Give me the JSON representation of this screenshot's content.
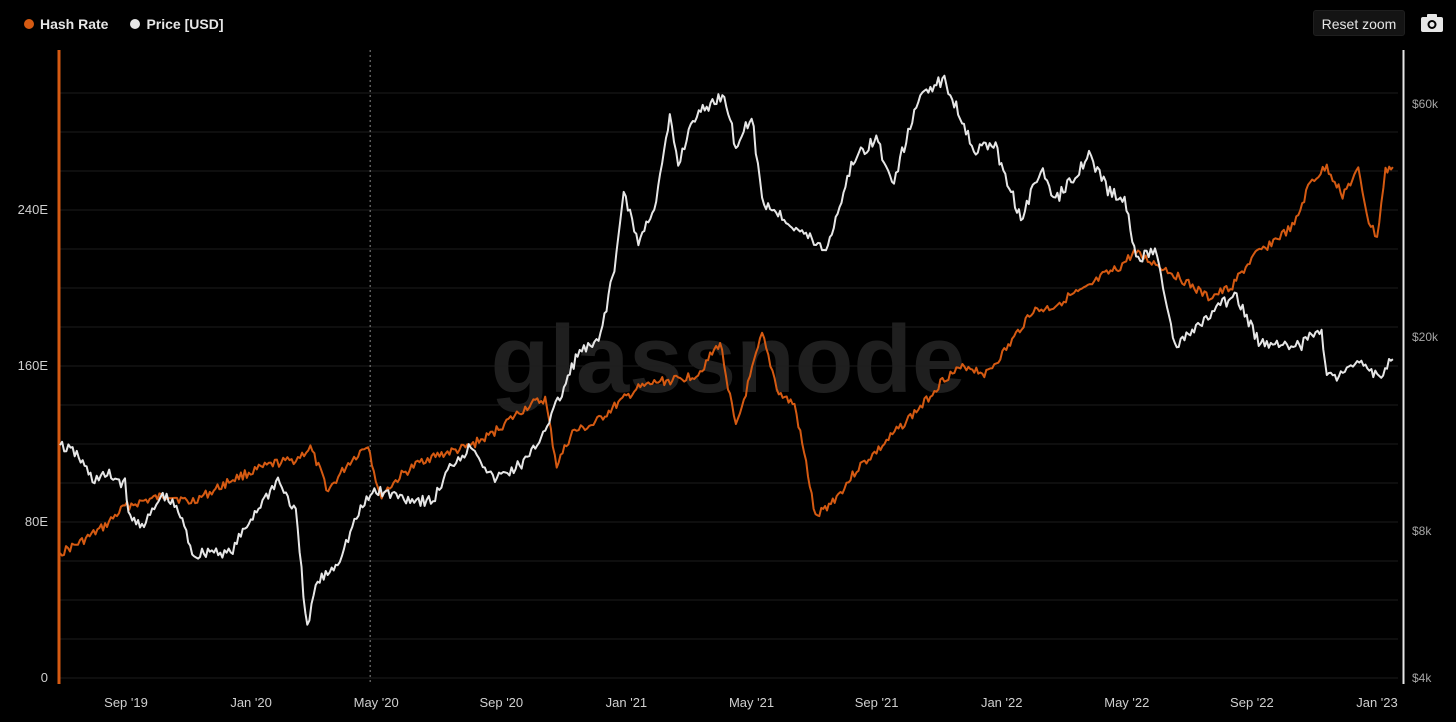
{
  "toolbar": {
    "reset_zoom_label": "Reset zoom",
    "camera_icon": "camera-icon"
  },
  "watermark": "glassnode",
  "chart_data": {
    "type": "line",
    "legend": [
      {
        "name": "Hash Rate",
        "color": "#d55a12"
      },
      {
        "name": "Price [USD]",
        "color": "#e6e6e6"
      }
    ],
    "legend_position": "top-left",
    "grid": true,
    "x_range": [
      "2019-07-20",
      "2023-01-15"
    ],
    "x_ticks": [
      "Sep '19",
      "Jan '20",
      "May '20",
      "Sep '20",
      "Jan '21",
      "May '21",
      "Sep '21",
      "Jan '22",
      "May '22",
      "Sep '22",
      "Jan '23"
    ],
    "y_left": {
      "ticks": [
        "0",
        "80E",
        "160E",
        "240E"
      ],
      "values": [
        0,
        80,
        160,
        240
      ],
      "range": [
        0,
        320
      ]
    },
    "y_right": {
      "scale": "log",
      "ticks": [
        "$4k",
        "$8k",
        "$20k",
        "$60k"
      ],
      "values": [
        4000,
        8000,
        20000,
        60000
      ],
      "range": [
        4000,
        72000
      ]
    },
    "crosshair_date": "2020-05-11",
    "series": [
      {
        "name": "Hash Rate",
        "color": "#d55a12",
        "axis": "left",
        "points": [
          [
            "2019-07-20",
            64
          ],
          [
            "2019-08-10",
            70
          ],
          [
            "2019-09-01",
            78
          ],
          [
            "2019-09-20",
            88
          ],
          [
            "2019-10-10",
            91
          ],
          [
            "2019-11-01",
            94
          ],
          [
            "2019-11-20",
            90
          ],
          [
            "2019-12-10",
            95
          ],
          [
            "2020-01-01",
            102
          ],
          [
            "2020-01-20",
            106
          ],
          [
            "2020-02-10",
            110
          ],
          [
            "2020-03-01",
            112
          ],
          [
            "2020-03-15",
            118
          ],
          [
            "2020-04-01",
            96
          ],
          [
            "2020-04-20",
            110
          ],
          [
            "2020-05-09",
            120
          ],
          [
            "2020-05-20",
            93
          ],
          [
            "2020-06-10",
            104
          ],
          [
            "2020-07-01",
            112
          ],
          [
            "2020-07-20",
            115
          ],
          [
            "2020-08-10",
            118
          ],
          [
            "2020-09-01",
            124
          ],
          [
            "2020-09-20",
            132
          ],
          [
            "2020-10-10",
            140
          ],
          [
            "2020-10-25",
            143
          ],
          [
            "2020-11-05",
            109
          ],
          [
            "2020-11-20",
            126
          ],
          [
            "2020-12-10",
            130
          ],
          [
            "2021-01-01",
            140
          ],
          [
            "2021-01-20",
            148
          ],
          [
            "2021-02-10",
            152
          ],
          [
            "2021-03-01",
            153
          ],
          [
            "2021-03-20",
            156
          ],
          [
            "2021-04-10",
            172
          ],
          [
            "2021-04-25",
            128
          ],
          [
            "2021-05-20",
            176
          ],
          [
            "2021-06-05",
            146
          ],
          [
            "2021-06-20",
            140
          ],
          [
            "2021-07-01",
            110
          ],
          [
            "2021-07-10",
            82
          ],
          [
            "2021-08-01",
            94
          ],
          [
            "2021-08-20",
            108
          ],
          [
            "2021-09-10",
            118
          ],
          [
            "2021-10-01",
            130
          ],
          [
            "2021-10-20",
            140
          ],
          [
            "2021-11-10",
            154
          ],
          [
            "2021-12-01",
            160
          ],
          [
            "2021-12-20",
            156
          ],
          [
            "2022-01-10",
            170
          ],
          [
            "2022-02-01",
            188
          ],
          [
            "2022-02-20",
            190
          ],
          [
            "2022-03-10",
            196
          ],
          [
            "2022-03-25",
            199
          ],
          [
            "2022-04-10",
            206
          ],
          [
            "2022-04-25",
            210
          ],
          [
            "2022-05-10",
            218
          ],
          [
            "2022-05-25",
            214
          ],
          [
            "2022-06-15",
            208
          ],
          [
            "2022-07-01",
            202
          ],
          [
            "2022-07-20",
            195
          ],
          [
            "2022-08-10",
            200
          ],
          [
            "2022-09-01",
            216
          ],
          [
            "2022-09-20",
            224
          ],
          [
            "2022-10-10",
            232
          ],
          [
            "2022-10-25",
            254
          ],
          [
            "2022-11-10",
            262
          ],
          [
            "2022-11-25",
            248
          ],
          [
            "2022-12-10",
            260
          ],
          [
            "2022-12-20",
            234
          ],
          [
            "2022-12-28",
            226
          ],
          [
            "2023-01-05",
            260
          ],
          [
            "2023-01-12",
            262
          ]
        ]
      },
      {
        "name": "Price [USD]",
        "color": "#e6e6e6",
        "axis": "right",
        "points": [
          [
            "2019-07-20",
            12000
          ],
          [
            "2019-08-05",
            11500
          ],
          [
            "2019-08-20",
            10200
          ],
          [
            "2019-09-05",
            10400
          ],
          [
            "2019-09-20",
            10000
          ],
          [
            "2019-09-25",
            8400
          ],
          [
            "2019-10-10",
            8300
          ],
          [
            "2019-10-26",
            9500
          ],
          [
            "2019-11-10",
            8800
          ],
          [
            "2019-11-25",
            7100
          ],
          [
            "2019-12-10",
            7300
          ],
          [
            "2019-12-30",
            7200
          ],
          [
            "2020-01-20",
            8600
          ],
          [
            "2020-02-13",
            10200
          ],
          [
            "2020-03-01",
            8700
          ],
          [
            "2020-03-12",
            5000
          ],
          [
            "2020-03-20",
            6200
          ],
          [
            "2020-04-10",
            6900
          ],
          [
            "2020-04-30",
            8700
          ],
          [
            "2020-05-15",
            9700
          ],
          [
            "2020-06-01",
            9500
          ],
          [
            "2020-06-20",
            9300
          ],
          [
            "2020-07-10",
            9200
          ],
          [
            "2020-07-28",
            11000
          ],
          [
            "2020-08-17",
            12000
          ],
          [
            "2020-09-05",
            10200
          ],
          [
            "2020-09-25",
            10700
          ],
          [
            "2020-10-10",
            11300
          ],
          [
            "2020-10-25",
            13000
          ],
          [
            "2020-11-10",
            15300
          ],
          [
            "2020-11-25",
            18500
          ],
          [
            "2020-12-15",
            19400
          ],
          [
            "2021-01-01",
            29000
          ],
          [
            "2021-01-08",
            40000
          ],
          [
            "2021-01-22",
            31000
          ],
          [
            "2021-02-08",
            38000
          ],
          [
            "2021-02-21",
            56000
          ],
          [
            "2021-03-01",
            45000
          ],
          [
            "2021-03-15",
            56000
          ],
          [
            "2021-04-14",
            63000
          ],
          [
            "2021-04-25",
            49000
          ],
          [
            "2021-05-10",
            57000
          ],
          [
            "2021-05-20",
            38000
          ],
          [
            "2021-06-10",
            35000
          ],
          [
            "2021-07-20",
            30000
          ],
          [
            "2021-08-15",
            46000
          ],
          [
            "2021-09-06",
            51000
          ],
          [
            "2021-09-21",
            41000
          ],
          [
            "2021-10-20",
            64000
          ],
          [
            "2021-11-10",
            67000
          ],
          [
            "2021-11-25",
            57000
          ],
          [
            "2021-12-10",
            48000
          ],
          [
            "2021-12-27",
            50000
          ],
          [
            "2022-01-22",
            35000
          ],
          [
            "2022-02-10",
            44000
          ],
          [
            "2022-02-24",
            38000
          ],
          [
            "2022-03-28",
            47000
          ],
          [
            "2022-04-15",
            40000
          ],
          [
            "2022-05-01",
            38000
          ],
          [
            "2022-05-12",
            29000
          ],
          [
            "2022-06-01",
            30000
          ],
          [
            "2022-06-18",
            19000
          ],
          [
            "2022-07-10",
            21000
          ],
          [
            "2022-08-14",
            24500
          ],
          [
            "2022-09-06",
            19500
          ],
          [
            "2022-10-01",
            19400
          ],
          [
            "2022-10-15",
            19100
          ],
          [
            "2022-11-05",
            21000
          ],
          [
            "2022-11-10",
            16500
          ],
          [
            "2022-12-01",
            17000
          ],
          [
            "2022-12-15",
            17800
          ],
          [
            "2022-12-30",
            16500
          ],
          [
            "2023-01-12",
            18000
          ]
        ]
      }
    ]
  }
}
